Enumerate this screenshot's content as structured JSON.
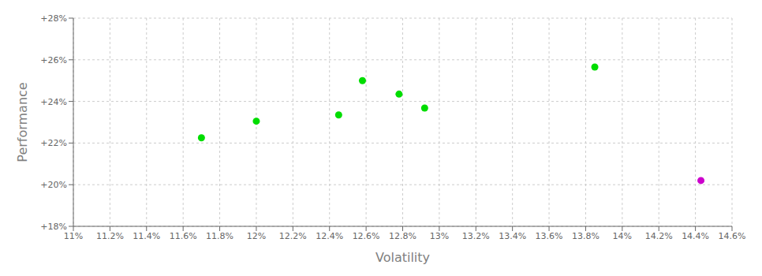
{
  "chart_data": {
    "type": "scatter",
    "xlabel": "Volatility",
    "ylabel": "Performance",
    "xlim": [
      0.11,
      0.146
    ],
    "ylim": [
      0.18,
      0.28
    ],
    "xticks": [
      {
        "value": 0.11,
        "label": "11%"
      },
      {
        "value": 0.112,
        "label": "11.2%"
      },
      {
        "value": 0.114,
        "label": "11.4%"
      },
      {
        "value": 0.116,
        "label": "11.6%"
      },
      {
        "value": 0.118,
        "label": "11.8%"
      },
      {
        "value": 0.12,
        "label": "12%"
      },
      {
        "value": 0.122,
        "label": "12.2%"
      },
      {
        "value": 0.124,
        "label": "12.4%"
      },
      {
        "value": 0.126,
        "label": "12.6%"
      },
      {
        "value": 0.128,
        "label": "12.8%"
      },
      {
        "value": 0.13,
        "label": "13%"
      },
      {
        "value": 0.132,
        "label": "13.2%"
      },
      {
        "value": 0.134,
        "label": "13.4%"
      },
      {
        "value": 0.136,
        "label": "13.6%"
      },
      {
        "value": 0.138,
        "label": "13.8%"
      },
      {
        "value": 0.14,
        "label": "14%"
      },
      {
        "value": 0.142,
        "label": "14.2%"
      },
      {
        "value": 0.144,
        "label": "14.4%"
      },
      {
        "value": 0.146,
        "label": "14.6%"
      }
    ],
    "yticks": [
      {
        "value": 0.18,
        "label": "+18%"
      },
      {
        "value": 0.2,
        "label": "+20%"
      },
      {
        "value": 0.22,
        "label": "+22%"
      },
      {
        "value": 0.24,
        "label": "+24%"
      },
      {
        "value": 0.26,
        "label": "+26%"
      },
      {
        "value": 0.28,
        "label": "+28%"
      }
    ],
    "grid": true,
    "series": [
      {
        "color": "#00dd00",
        "x": [
          0.117,
          0.12,
          0.1245,
          0.1258,
          0.1278,
          0.1292,
          0.1385
        ],
        "y": [
          0.2225,
          0.2305,
          0.2335,
          0.25,
          0.2435,
          0.2368,
          0.2565
        ]
      },
      {
        "color": "#cc00cc",
        "x": [
          0.1443
        ],
        "y": [
          0.202
        ]
      }
    ]
  }
}
